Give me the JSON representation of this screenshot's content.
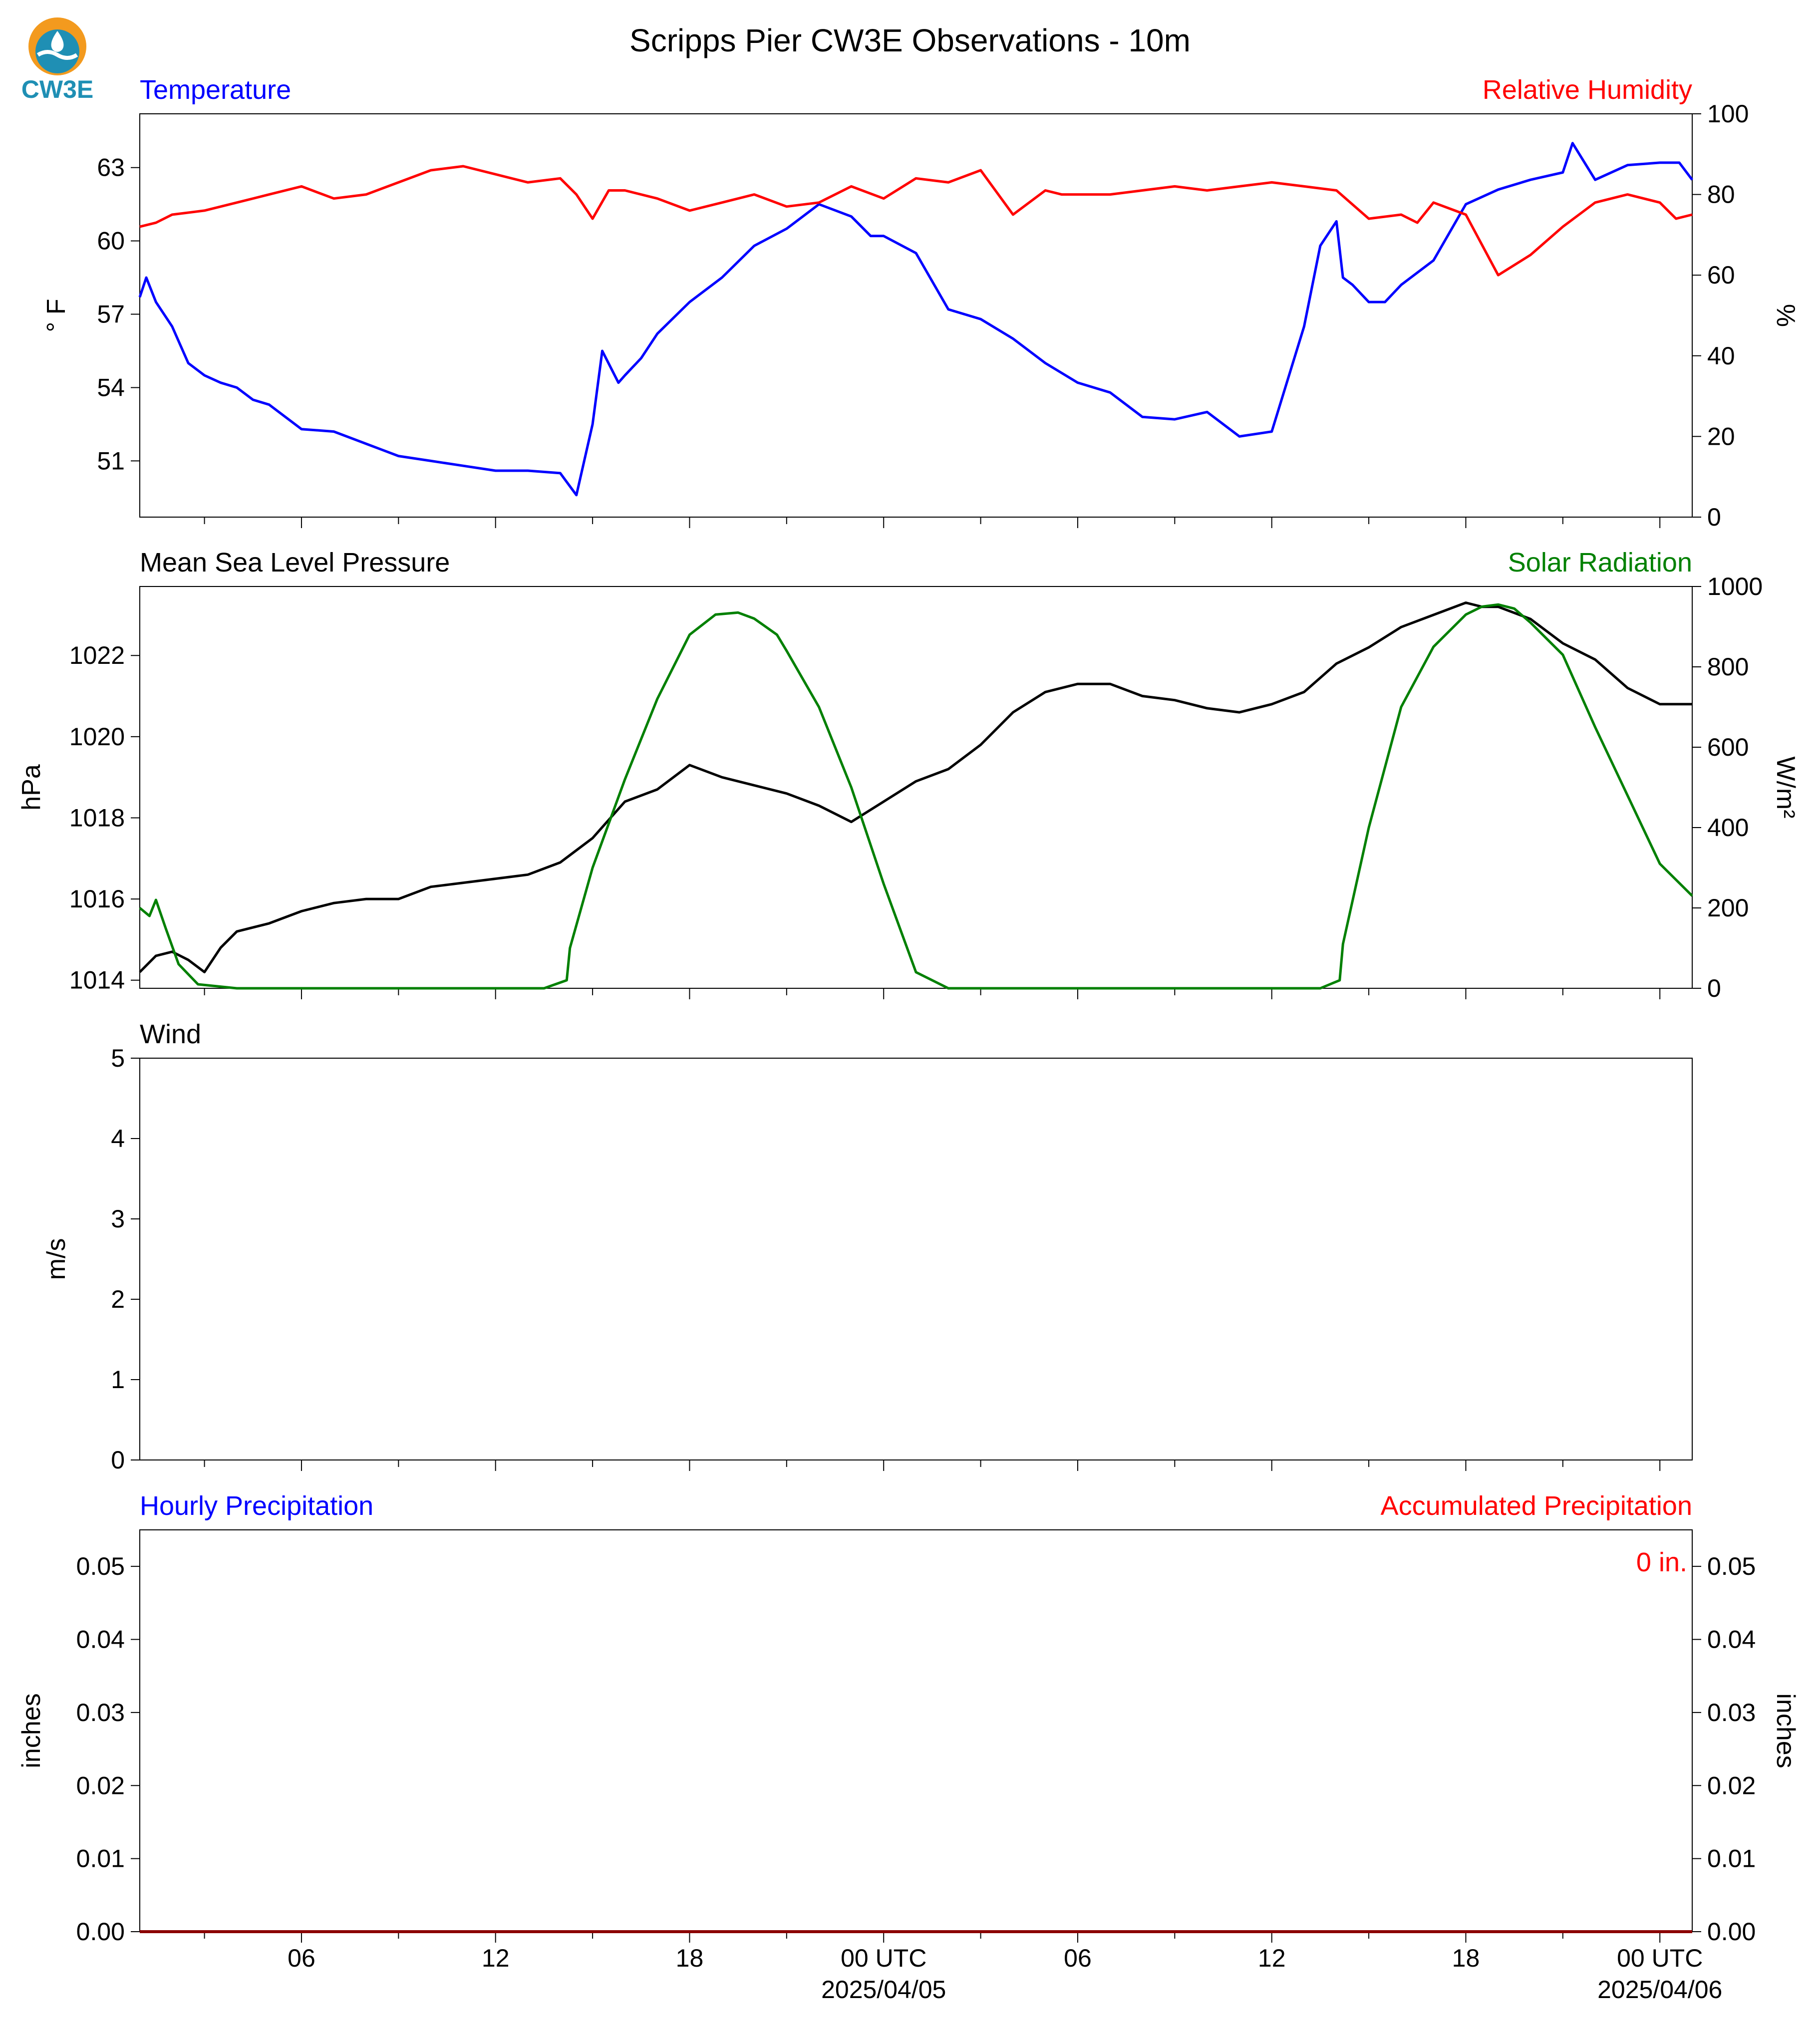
{
  "title": "Scripps Pier CW3E Observations - 10m",
  "logo": {
    "text": "CW3E",
    "colors": [
      "#f39a1e",
      "#1f8fb4",
      "#ffffff"
    ]
  },
  "x_axis": {
    "ticks_hours": [
      6,
      12,
      18,
      24,
      30,
      36,
      42,
      48
    ],
    "tick_labels": [
      "06",
      "12",
      "18",
      "00 UTC",
      "06",
      "12",
      "18",
      "00 UTC"
    ],
    "date_labels": [
      {
        "hour": 24,
        "text": "2025/04/05"
      },
      {
        "hour": 48,
        "text": "2025/04/06"
      }
    ]
  },
  "chart_data": [
    {
      "type": "line",
      "left_title": "Temperature",
      "right_title": "Relative Humidity",
      "ylabel": "° F",
      "ylabel_right": "%",
      "xlim": [
        1,
        49
      ],
      "ylim": [
        48.7,
        65.2
      ],
      "ylim_right": [
        0,
        100
      ],
      "yticks": [
        51,
        54,
        57,
        60,
        63
      ],
      "yticks_right": [
        0,
        20,
        40,
        60,
        80,
        100
      ],
      "colors": {
        "left": "#0000ff",
        "right": "#ff0000"
      },
      "series": [
        {
          "name": "Temperature",
          "axis": "left",
          "color": "#0000ff",
          "x": [
            1,
            1.2,
            1.5,
            2,
            2.5,
            3,
            3.5,
            4,
            4.5,
            5,
            6,
            7,
            8,
            9,
            10,
            11,
            12,
            13,
            14,
            14.5,
            15,
            15.3,
            15.8,
            16,
            16.5,
            17,
            18,
            19,
            20,
            21,
            22,
            23,
            23.6,
            24,
            25,
            26,
            27,
            28,
            29,
            30,
            31,
            32,
            33,
            34,
            35,
            36,
            37,
            37.5,
            38,
            38.2,
            38.5,
            39,
            39.5,
            40,
            41,
            42,
            43,
            44,
            45,
            45.3,
            46,
            47,
            48,
            48.6,
            49
          ],
          "values": [
            57.7,
            58.5,
            57.5,
            56.5,
            55,
            54.5,
            54.2,
            54,
            53.5,
            53.3,
            52.3,
            52.2,
            51.7,
            51.2,
            51,
            50.8,
            50.6,
            50.6,
            50.5,
            49.6,
            52.5,
            55.5,
            54.2,
            54.5,
            55.2,
            56.2,
            57.5,
            58.5,
            59.8,
            60.5,
            61.5,
            61,
            60.2,
            60.2,
            59.5,
            57.2,
            56.8,
            56,
            55,
            54.2,
            53.8,
            52.8,
            52.7,
            53,
            52,
            52.2,
            56.5,
            59.8,
            60.8,
            58.5,
            58.2,
            57.5,
            57.5,
            58.2,
            59.2,
            61.5,
            62.1,
            62.5,
            62.8,
            64,
            62.5,
            63.1,
            63.2,
            63.2,
            62.5
          ]
        },
        {
          "name": "Relative Humidity",
          "axis": "right",
          "color": "#ff0000",
          "x": [
            1,
            1.5,
            2,
            3,
            4,
            5,
            6,
            7,
            8,
            9,
            10,
            11,
            12,
            13,
            14,
            14.5,
            15,
            15.5,
            16,
            17,
            18,
            19,
            20,
            21,
            22,
            23,
            24,
            25,
            26,
            27,
            28,
            29,
            29.5,
            30,
            31,
            32,
            33,
            34,
            35,
            36,
            37,
            38,
            39,
            40,
            40.5,
            41,
            42,
            43,
            44,
            45,
            46,
            47,
            48,
            48.5,
            49
          ],
          "values": [
            72,
            73,
            75,
            76,
            78,
            80,
            82,
            79,
            80,
            83,
            86,
            87,
            85,
            83,
            84,
            80,
            74,
            81,
            81,
            79,
            76,
            78,
            80,
            77,
            78,
            82,
            79,
            84,
            83,
            86,
            75,
            81,
            80,
            80,
            80,
            81,
            82,
            81,
            82,
            83,
            82,
            81,
            74,
            75,
            73,
            78,
            75,
            60,
            65,
            72,
            78,
            80,
            78,
            74,
            75
          ]
        }
      ]
    },
    {
      "type": "line",
      "left_title": "Mean Sea Level Pressure",
      "right_title": "Solar Radiation",
      "ylabel": "hPa",
      "ylabel_right": "W/m²",
      "xlim": [
        1,
        49
      ],
      "ylim": [
        1013.8,
        1023.7
      ],
      "ylim_right": [
        0,
        1000
      ],
      "yticks": [
        1014,
        1016,
        1018,
        1020,
        1022
      ],
      "yticks_right": [
        0,
        200,
        400,
        600,
        800,
        1000
      ],
      "colors": {
        "left": "#000000",
        "right": "#008000"
      },
      "series": [
        {
          "name": "Mean Sea Level Pressure",
          "axis": "left",
          "color": "#000000",
          "x": [
            1,
            1.5,
            2,
            2.5,
            3,
            3.5,
            4,
            5,
            6,
            7,
            8,
            9,
            10,
            11,
            12,
            13,
            14,
            15,
            16,
            17,
            18,
            19,
            20,
            21,
            22,
            23,
            24,
            25,
            26,
            27,
            28,
            29,
            30,
            31,
            32,
            33,
            34,
            35,
            36,
            37,
            38,
            39,
            40,
            41,
            42,
            42.5,
            43,
            44,
            45,
            46,
            47,
            48,
            49
          ],
          "values": [
            1014.2,
            1014.6,
            1014.7,
            1014.5,
            1014.2,
            1014.8,
            1015.2,
            1015.4,
            1015.7,
            1015.9,
            1016.0,
            1016.0,
            1016.3,
            1016.4,
            1016.5,
            1016.6,
            1016.9,
            1017.5,
            1018.4,
            1018.7,
            1019.3,
            1019.0,
            1018.8,
            1018.6,
            1018.3,
            1017.9,
            1018.4,
            1018.9,
            1019.2,
            1019.8,
            1020.6,
            1021.1,
            1021.3,
            1021.3,
            1021.0,
            1020.9,
            1020.7,
            1020.6,
            1020.8,
            1021.1,
            1021.8,
            1022.2,
            1022.7,
            1023.0,
            1023.3,
            1023.2,
            1023.2,
            1022.9,
            1022.3,
            1021.9,
            1021.2,
            1020.8,
            1020.8
          ]
        },
        {
          "name": "Solar Radiation",
          "axis": "right",
          "color": "#008000",
          "x": [
            1,
            1.3,
            1.5,
            1.8,
            2.2,
            2.8,
            4,
            6,
            8,
            10,
            12,
            13.5,
            14.2,
            14.3,
            15,
            16,
            17,
            18,
            18.8,
            19.5,
            20,
            20.7,
            21,
            22,
            23,
            24,
            25,
            26,
            27,
            28,
            30,
            32,
            34,
            36,
            37.5,
            38.1,
            38.2,
            39,
            40,
            41,
            42,
            42.5,
            43,
            43.5,
            44,
            45,
            46,
            47,
            48,
            49
          ],
          "values": [
            200,
            180,
            220,
            150,
            60,
            10,
            0,
            0,
            0,
            0,
            0,
            0,
            20,
            100,
            300,
            520,
            720,
            880,
            930,
            935,
            920,
            880,
            840,
            700,
            500,
            260,
            40,
            0,
            0,
            0,
            0,
            0,
            0,
            0,
            0,
            20,
            110,
            400,
            700,
            850,
            930,
            950,
            955,
            945,
            910,
            830,
            650,
            480,
            310,
            230
          ]
        }
      ]
    },
    {
      "type": "line",
      "left_title": "Wind",
      "ylabel": "m/s",
      "xlim": [
        1,
        49
      ],
      "ylim": [
        0,
        5
      ],
      "yticks": [
        0,
        1,
        2,
        3,
        4,
        5
      ],
      "series": []
    },
    {
      "type": "bar",
      "left_title": "Hourly Precipitation",
      "right_title": "Accumulated Precipitation",
      "ylabel": "inches",
      "ylabel_right": "inches",
      "xlim": [
        1,
        49
      ],
      "ylim": [
        0,
        0.055
      ],
      "ylim_right": [
        0,
        0.055
      ],
      "yticks": [
        "0.00",
        "0.01",
        "0.02",
        "0.03",
        "0.04",
        "0.05"
      ],
      "yticks_right": [
        "0.00",
        "0.01",
        "0.02",
        "0.03",
        "0.04",
        "0.05"
      ],
      "colors": {
        "left": "#0000ff",
        "right": "#ff0000"
      },
      "annotation": "0 in.",
      "series": [
        {
          "name": "Accumulated Precipitation",
          "axis": "right",
          "color": "#8b0000",
          "x": [
            1,
            49
          ],
          "values": [
            0,
            0
          ]
        }
      ]
    }
  ]
}
